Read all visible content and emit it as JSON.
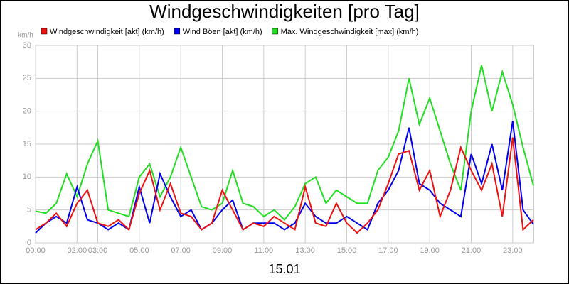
{
  "chart_data": {
    "type": "line",
    "title": "Windgeschwindigkeiten [pro Tag]",
    "y_unit": "km/h",
    "x_label": "15.01",
    "x": [
      0,
      0.5,
      1,
      1.5,
      2,
      2.5,
      3,
      3.5,
      4,
      4.5,
      5,
      5.5,
      6,
      6.5,
      7,
      7.5,
      8,
      8.5,
      9,
      9.5,
      10,
      10.5,
      11,
      11.5,
      12,
      12.5,
      13,
      13.5,
      14,
      14.5,
      15,
      15.5,
      16,
      16.5,
      17,
      17.5,
      18,
      18.5,
      19,
      19.5,
      20,
      20.5,
      21,
      21.5,
      22,
      22.5,
      23,
      23.5,
      24
    ],
    "series": [
      {
        "name": "Max. Windgeschwindigkeit [max] (km/h)",
        "color": "#22dd22",
        "values": [
          4.8,
          4.5,
          6,
          10.5,
          7,
          12,
          15.5,
          5,
          4.5,
          4,
          10,
          12,
          7,
          10,
          14.5,
          10,
          5.5,
          5,
          6,
          11,
          6,
          5.5,
          4,
          5,
          3.5,
          5.5,
          9,
          10,
          6,
          8,
          7,
          6,
          6,
          11,
          13,
          17,
          25,
          18,
          22,
          17,
          12,
          8,
          20,
          27,
          20,
          26,
          21,
          14.5,
          8.7
        ]
      },
      {
        "name": "Wind Böen [akt] (km/h)",
        "color": "#0000ee",
        "values": [
          1.5,
          3,
          4,
          3,
          8.5,
          3.5,
          3,
          2,
          3,
          2,
          8.5,
          3,
          10.5,
          7,
          4,
          5,
          2,
          3,
          5,
          6.5,
          2,
          3,
          3,
          3,
          2,
          3,
          6,
          4,
          3,
          3,
          4,
          3,
          2,
          6,
          8,
          11,
          17.5,
          9,
          8,
          6,
          5,
          4,
          13.5,
          9,
          15,
          8,
          18.5,
          5,
          2.8
        ]
      },
      {
        "name": "Windgeschwindigkeit [akt] (km/h)",
        "color": "#ee1111",
        "values": [
          2,
          3,
          4.5,
          2.5,
          6,
          8,
          3,
          2.5,
          3.5,
          2,
          7.5,
          11,
          5,
          9,
          4.5,
          4,
          2,
          3,
          8,
          5,
          2,
          3,
          2.5,
          4,
          3,
          2,
          8.5,
          3,
          2.5,
          6,
          3,
          1.5,
          3,
          5,
          9,
          13.5,
          14,
          8,
          11,
          4,
          8,
          14.5,
          11,
          8,
          12,
          4,
          16,
          2,
          3.5
        ]
      }
    ],
    "legend_order": [
      2,
      1,
      0
    ],
    "xlim": [
      0,
      24
    ],
    "xticks": [
      {
        "value": 0,
        "label": "00:00"
      },
      {
        "value": 2,
        "label": "02:00"
      },
      {
        "value": 3,
        "label": "03:00"
      },
      {
        "value": 5,
        "label": "05:00"
      },
      {
        "value": 7,
        "label": "07:00"
      },
      {
        "value": 9,
        "label": "09:00"
      },
      {
        "value": 11,
        "label": "11:00"
      },
      {
        "value": 13,
        "label": "13:00"
      },
      {
        "value": 15,
        "label": "15:00"
      },
      {
        "value": 17,
        "label": "17:00"
      },
      {
        "value": 19,
        "label": "19:00"
      },
      {
        "value": 21,
        "label": "21:00"
      },
      {
        "value": 23,
        "label": "23:00"
      }
    ],
    "ylim": [
      0,
      30
    ],
    "yticks": [
      0,
      5,
      10,
      15,
      20,
      25,
      30
    ],
    "grid": true
  }
}
